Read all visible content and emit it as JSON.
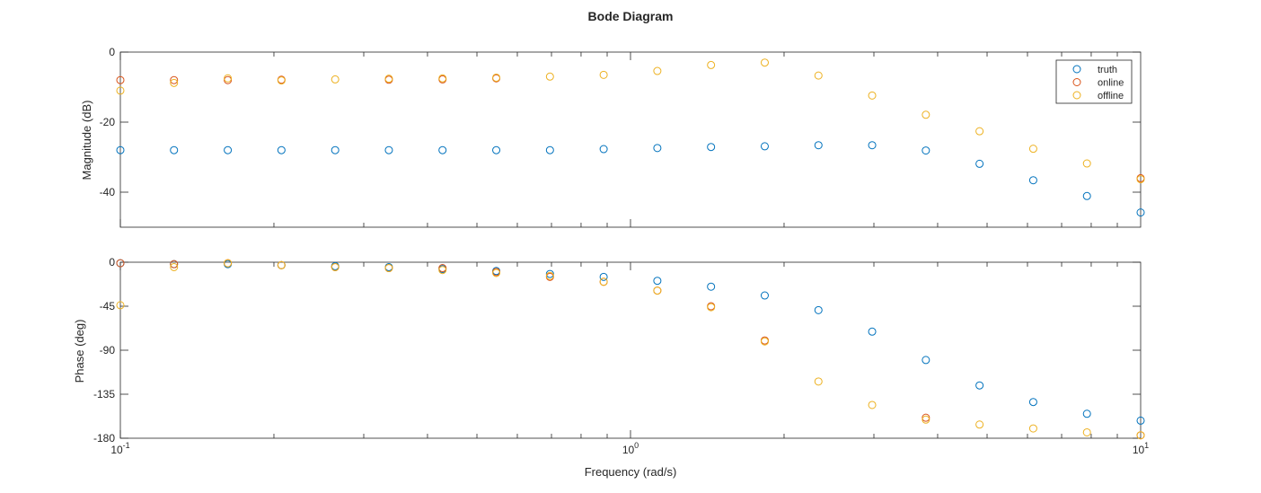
{
  "chart_data": {
    "type": "scatter",
    "title": "Bode Diagram",
    "xlabel": "Frequency (rad/s)",
    "xscale": "log",
    "xlim": [
      0.1,
      10
    ],
    "xticks": [
      "10",
      "0",
      "10",
      "1",
      "10",
      "1"
    ],
    "xtick_labels": [
      {
        "base": "10",
        "exp": "-1"
      },
      {
        "base": "10",
        "exp": "0"
      },
      {
        "base": "10",
        "exp": "1"
      }
    ],
    "legend": {
      "location": "top-right",
      "entries": [
        "truth",
        "online",
        "offline"
      ]
    },
    "colors": {
      "truth": "#0072BD",
      "online": "#D95319",
      "offline": "#EDB120"
    },
    "marker": "hollow-circle",
    "frequency": [
      0.1,
      0.1274,
      0.1624,
      0.2069,
      0.2637,
      0.336,
      0.4281,
      0.5456,
      0.6952,
      0.8859,
      1.1288,
      1.4384,
      1.833,
      2.3357,
      2.9764,
      3.7927,
      4.8329,
      6.1585,
      7.8476,
      10.0
    ],
    "magnitude": {
      "ylabel": "Magnitude (dB)",
      "ylim": [
        -50,
        0
      ],
      "yticks": [
        0,
        -20,
        -40
      ],
      "series": [
        {
          "name": "truth",
          "values": [
            -28,
            -28,
            -28,
            -28,
            -28,
            -28,
            -28,
            -28,
            -28,
            -27.7,
            -27.4,
            -27.1,
            -26.9,
            -26.6,
            -26.6,
            -28.1,
            -31.9,
            -36.6,
            -41.1,
            -45.8
          ]
        },
        {
          "name": "online",
          "values": [
            -8,
            -8,
            -8,
            -7.9,
            null,
            -7.9,
            -7.8,
            -7.5,
            null,
            null,
            null,
            null,
            null,
            null,
            null,
            null,
            null,
            null,
            null,
            -36
          ]
        },
        {
          "name": "offline",
          "values": [
            -11,
            -8.8,
            -7.5,
            -8.1,
            -7.8,
            -7.6,
            -7.5,
            -7.3,
            -7,
            -6.5,
            -5.4,
            -3.7,
            -3,
            -6.7,
            -12.4,
            -17.9,
            -22.6,
            -27.6,
            -31.8,
            -36.3
          ]
        }
      ]
    },
    "phase": {
      "ylabel": "Phase (deg)",
      "ylim": [
        -180,
        0
      ],
      "yticks": [
        0,
        -45,
        -90,
        -135,
        -180
      ],
      "series": [
        {
          "name": "truth",
          "values": [
            -1,
            -2,
            -2,
            -3,
            -4,
            -5,
            -7,
            -9,
            -12,
            -15,
            -19,
            -25,
            -34,
            -49,
            -71,
            -100,
            -126,
            -143,
            -155,
            -162
          ]
        },
        {
          "name": "online",
          "values": [
            -1,
            -2,
            -1,
            -3,
            -5,
            -6,
            -6,
            -10,
            -15,
            -20,
            -29,
            -45,
            -80,
            null,
            null,
            -159,
            null,
            null,
            null,
            -177
          ]
        },
        {
          "name": "offline",
          "values": [
            -44,
            -5,
            -1,
            -3,
            -5,
            -6,
            -8,
            -11,
            -14,
            -20,
            -29,
            -46,
            -81,
            -122,
            -146,
            -161,
            -166,
            -170,
            -174,
            -177
          ]
        }
      ]
    }
  }
}
